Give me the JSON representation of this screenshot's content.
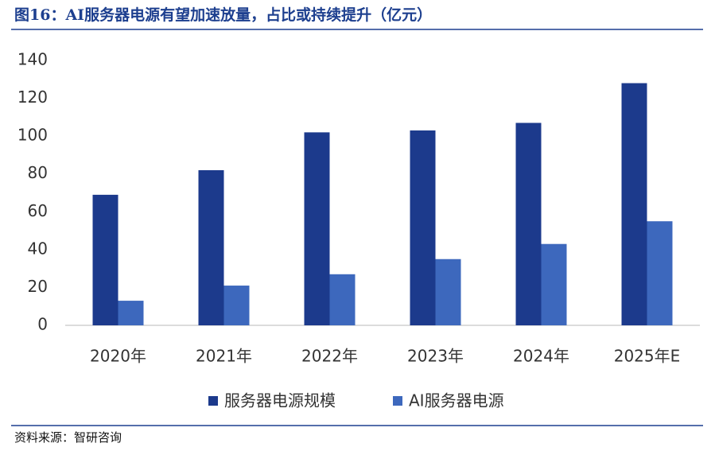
{
  "chart_data": {
    "type": "bar",
    "title": "图16：AI服务器电源有望加速放量，占比或持续提升（亿元）",
    "categories": [
      "2020年",
      "2021年",
      "2022年",
      "2023年",
      "2024年",
      "2025年E"
    ],
    "series": [
      {
        "name": "服务器电源规模",
        "color": "#1c3a8c",
        "values": [
          69,
          82,
          102,
          103,
          107,
          128
        ]
      },
      {
        "name": "AI服务器电源",
        "color": "#3d68bd",
        "values": [
          13,
          21,
          27,
          35,
          43,
          55
        ]
      }
    ],
    "ylim": [
      0,
      140
    ],
    "yticks": [
      0,
      20,
      40,
      60,
      80,
      100,
      120,
      140
    ],
    "grid": false,
    "source": "资料来源：智研咨询"
  }
}
